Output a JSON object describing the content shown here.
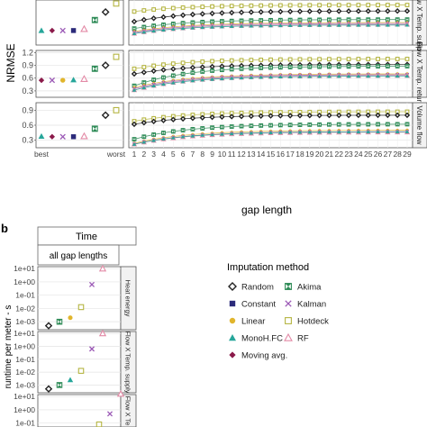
{
  "panel_b_label": "b",
  "chart_data": [
    {
      "type": "scatter",
      "ylabel": "NRMSE",
      "xlabel": "gap length",
      "left_x_categories": [
        "best",
        "",
        "",
        "",
        "",
        "",
        "",
        "worst"
      ],
      "right_x_categories": [
        "1",
        "2",
        "3",
        "4",
        "5",
        "6",
        "7",
        "8",
        "9",
        "10",
        "11",
        "12",
        "13",
        "14",
        "15",
        "16",
        "17",
        "18",
        "19",
        "20",
        "21",
        "22",
        "23",
        "24",
        "25",
        "26",
        "27",
        "28",
        "29"
      ],
      "grid": true,
      "rows": [
        {
          "label": "Flow X Temp. supply",
          "ylim": [
            0.15,
            1.05
          ],
          "yticks": [],
          "best_to_worst": [
            {
              "method": "MonoH.FC",
              "value": 0.44
            },
            {
              "method": "Moving avg.",
              "value": 0.44
            },
            {
              "method": "Kalman",
              "value": 0.44
            },
            {
              "method": "Constant",
              "value": 0.44
            },
            {
              "method": "RF",
              "value": 0.47
            },
            {
              "method": "Akima",
              "value": 0.65
            },
            {
              "method": "Random",
              "value": 0.81
            },
            {
              "method": "Hotdeck",
              "value": 0.98
            }
          ],
          "curves": [
            {
              "method": "Hotdeck",
              "start": 0.82,
              "end": 0.95
            },
            {
              "method": "Random",
              "start": 0.62,
              "end": 0.83
            },
            {
              "method": "Akima",
              "start": 0.48,
              "end": 0.66
            },
            {
              "method": "Linear",
              "start": 0.42,
              "end": 0.6
            },
            {
              "method": "Kalman",
              "start": 0.4,
              "end": 0.58
            },
            {
              "method": "RF",
              "start": 0.38,
              "end": 0.56
            },
            {
              "method": "MonoH.FC",
              "start": 0.38,
              "end": 0.55
            }
          ]
        },
        {
          "label": "Flow X Temp. return",
          "ylim": [
            0.15,
            1.25
          ],
          "yticks": [
            0.3,
            0.6,
            0.9,
            1.2
          ],
          "best_to_worst": [
            {
              "method": "Moving avg.",
              "value": 0.55
            },
            {
              "method": "Kalman",
              "value": 0.55
            },
            {
              "method": "Linear",
              "value": 0.55
            },
            {
              "method": "MonoH.FC",
              "value": 0.56
            },
            {
              "method": "RF",
              "value": 0.58
            },
            {
              "method": "Akima",
              "value": 0.82
            },
            {
              "method": "Random",
              "value": 0.9
            },
            {
              "method": "Hotdeck",
              "value": 1.1
            }
          ],
          "curves": [
            {
              "method": "Hotdeck",
              "start": 0.82,
              "end": 1.05
            },
            {
              "method": "Random",
              "start": 0.7,
              "end": 0.92
            },
            {
              "method": "Akima",
              "start": 0.42,
              "end": 0.88
            },
            {
              "method": "Linear",
              "start": 0.38,
              "end": 0.7
            },
            {
              "method": "Kalman",
              "start": 0.35,
              "end": 0.68
            },
            {
              "method": "RF",
              "start": 0.32,
              "end": 0.66
            },
            {
              "method": "MonoH.FC",
              "start": 0.32,
              "end": 0.65
            }
          ]
        },
        {
          "label": "Volume flow",
          "ylim": [
            0.15,
            1.05
          ],
          "yticks": [
            0.3,
            0.6,
            0.9
          ],
          "best_to_worst": [
            {
              "method": "MonoH.FC",
              "value": 0.38
            },
            {
              "method": "Moving avg.",
              "value": 0.37
            },
            {
              "method": "Kalman",
              "value": 0.37
            },
            {
              "method": "Constant",
              "value": 0.37
            },
            {
              "method": "RF",
              "value": 0.38
            },
            {
              "method": "Akima",
              "value": 0.53
            },
            {
              "method": "Random",
              "value": 0.8
            },
            {
              "method": "Hotdeck",
              "value": 0.9
            }
          ],
          "curves": [
            {
              "method": "Hotdeck",
              "start": 0.68,
              "end": 0.87
            },
            {
              "method": "Random",
              "start": 0.62,
              "end": 0.8
            },
            {
              "method": "Akima",
              "start": 0.32,
              "end": 0.62
            },
            {
              "method": "Linear",
              "start": 0.24,
              "end": 0.5
            },
            {
              "method": "Kalman",
              "start": 0.22,
              "end": 0.47
            },
            {
              "method": "RF",
              "start": 0.22,
              "end": 0.46
            },
            {
              "method": "MonoH.FC",
              "start": 0.22,
              "end": 0.47
            }
          ]
        }
      ]
    },
    {
      "type": "scatter",
      "title": "Time",
      "subtitle": "all gap lengths",
      "ylabel": "runtime per meter - s",
      "log_scale": true,
      "yticks": [
        "1e+01",
        "1e+00",
        "1e-01",
        "1e-02",
        "1e-03"
      ],
      "rows": [
        {
          "label": "Heat energy",
          "values_log10": [
            {
              "method": "Random",
              "value": -3.3
            },
            {
              "method": "Akima",
              "value": -3.0
            },
            {
              "method": "Linear",
              "value": -2.7
            },
            {
              "method": "Hotdeck",
              "value": -1.9
            },
            {
              "method": "Kalman",
              "value": -0.2
            },
            {
              "method": "RF",
              "value": 1.0
            }
          ]
        },
        {
          "label": "Flow X Temp. supply",
          "values_log10": [
            {
              "method": "Random",
              "value": -3.3
            },
            {
              "method": "Akima",
              "value": -3.0
            },
            {
              "method": "MonoH.FC",
              "value": -2.6
            },
            {
              "method": "Hotdeck",
              "value": -1.9
            },
            {
              "method": "Kalman",
              "value": -0.2
            },
            {
              "method": "RF",
              "value": 1.0
            }
          ]
        },
        {
          "label": "Flow X Te",
          "values_log10": [
            {
              "method": "Hotdeck",
              "value": -1.1
            },
            {
              "method": "Kalman",
              "value": -0.3
            },
            {
              "method": "RF",
              "value": 1.2
            }
          ]
        }
      ]
    }
  ],
  "legend": {
    "title": "Imputation method",
    "entries": [
      {
        "method": "Random",
        "shape": "diamond",
        "color": "#222222"
      },
      {
        "method": "Akima",
        "shape": "bowtie",
        "color": "#2e8b57"
      },
      {
        "method": "Constant",
        "shape": "square",
        "color": "#2b2a7a"
      },
      {
        "method": "Kalman",
        "shape": "x",
        "color": "#9b59b6"
      },
      {
        "method": "Linear",
        "shape": "circle",
        "color": "#e1b52c"
      },
      {
        "method": "Hotdeck",
        "shape": "square-open",
        "color": "#b5b542"
      },
      {
        "method": "MonoH.FC",
        "shape": "triangle",
        "color": "#26a69a"
      },
      {
        "method": "RF",
        "shape": "triangle-open",
        "color": "#e38aa6"
      },
      {
        "method": "Moving avg.",
        "shape": "diamond-small",
        "color": "#8b1a4a"
      }
    ]
  }
}
